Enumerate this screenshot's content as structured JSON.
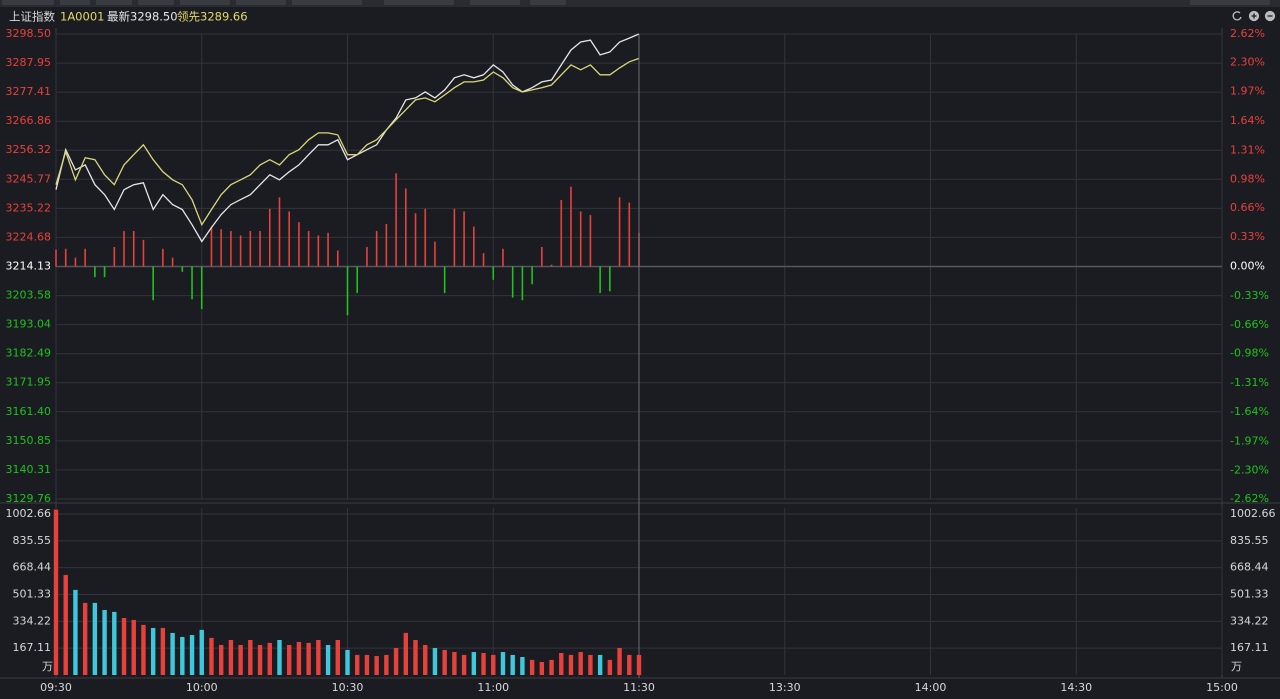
{
  "header": {
    "name": "上证指数",
    "code": "1A0001",
    "latest": "最新3298.50",
    "leading": "领先3289.66"
  },
  "chart_data": {
    "type": "line",
    "x_labels": [
      "09:30",
      "10:00",
      "10:30",
      "11:00",
      "11:30",
      "13:30",
      "14:00",
      "14:30",
      "15:00"
    ],
    "ylim": [
      3129.76,
      3298.5
    ],
    "yticks": [
      {
        "value": 3298.5,
        "label": "3298.50"
      },
      3287.95,
      3277.41,
      3266.86,
      3256.32,
      3245.77,
      3235.22,
      3224.68,
      3214.13,
      3203.58,
      3193.04,
      3182.49,
      3171.95,
      {
        "value": 3161.4,
        "label": "3161.40"
      },
      3150.85,
      3140.31,
      3129.76
    ],
    "y2lim": [
      -2.62,
      2.62
    ],
    "y2ticks": [
      {
        "value": 2.62,
        "label": "2.62%"
      },
      {
        "value": 2.3,
        "label": "2.30%"
      },
      {
        "value": 1.97,
        "label": "1.97%"
      },
      {
        "value": 1.64,
        "label": "1.64%"
      },
      {
        "value": 1.31,
        "label": "1.31%"
      },
      {
        "value": 0.98,
        "label": "0.98%"
      },
      {
        "value": 0.66,
        "label": "0.66%"
      },
      {
        "value": 0.33,
        "label": "0.33%"
      },
      {
        "value": 0,
        "label": "0.00%"
      },
      {
        "value": -0.33,
        "label": "-0.33%"
      },
      {
        "value": -0.66,
        "label": "-0.66%"
      },
      {
        "value": -0.98,
        "label": "-0.98%"
      },
      {
        "value": -1.31,
        "label": "-1.31%"
      },
      {
        "value": -1.64,
        "label": "-1.64%"
      },
      {
        "value": -1.97,
        "label": "-1.97%"
      },
      {
        "value": -2.3,
        "label": "-2.30%"
      },
      {
        "value": -2.62,
        "label": "-2.62%"
      }
    ],
    "grid": true,
    "series": [
      {
        "color": "#e6e6e6",
        "values": [
          3242.0,
          3256.5,
          3249.2,
          3251.0,
          3243.8,
          3240.2,
          3234.8,
          3242.0,
          3243.8,
          3244.5,
          3234.8,
          3240.2,
          3236.6,
          3234.8,
          3229.3,
          3223.2,
          3228.3,
          3233.0,
          3236.6,
          3238.4,
          3240.2,
          3243.8,
          3247.4,
          3245.6,
          3248.5,
          3251.0,
          3254.7,
          3258.3,
          3258.3,
          3260.1,
          3252.9,
          3254.7,
          3256.5,
          3258.3,
          3263.7,
          3268.0,
          3274.6,
          3275.3,
          3277.5,
          3275.3,
          3278.2,
          3282.6,
          3283.7,
          3282.6,
          3283.7,
          3287.3,
          3284.7,
          3280.0,
          3277.5,
          3279.0,
          3281.1,
          3281.8,
          3287.3,
          3292.7,
          3295.6,
          3296.3,
          3290.9,
          3292.0,
          3295.6,
          3297.0,
          3298.5
        ]
      },
      {
        "color": "#d9d77a",
        "values": [
          3243.8,
          3255.8,
          3245.6,
          3253.6,
          3252.9,
          3247.4,
          3243.8,
          3251.0,
          3254.7,
          3258.3,
          3252.9,
          3248.5,
          3245.6,
          3243.8,
          3238.4,
          3229.3,
          3234.8,
          3240.2,
          3243.8,
          3245.6,
          3247.4,
          3251.0,
          3252.9,
          3251.0,
          3254.7,
          3256.5,
          3260.1,
          3262.6,
          3262.6,
          3261.9,
          3254.7,
          3254.7,
          3258.3,
          3260.1,
          3263.7,
          3267.4,
          3271.0,
          3274.6,
          3275.3,
          3273.9,
          3276.4,
          3279.0,
          3281.1,
          3281.1,
          3281.8,
          3284.7,
          3282.6,
          3279.0,
          3277.5,
          3278.2,
          3279.0,
          3280.0,
          3283.7,
          3287.3,
          3285.5,
          3287.3,
          3283.7,
          3283.7,
          3286.2,
          3288.4,
          3289.66
        ]
      },
      {
        "type": "bar",
        "axis": "y2",
        "up_color": "#e8413c",
        "down_color": "#1ec31e",
        "values": [
          0.19,
          0.2,
          0.1,
          0.2,
          -0.12,
          -0.12,
          0.22,
          0.4,
          0.4,
          0.3,
          -0.38,
          0.2,
          0.1,
          -0.06,
          -0.37,
          -0.48,
          0.45,
          0.42,
          0.4,
          0.35,
          0.4,
          0.4,
          0.65,
          0.78,
          0.62,
          0.5,
          0.4,
          0.35,
          0.38,
          0.18,
          -0.55,
          -0.3,
          0.22,
          0.4,
          0.48,
          1.05,
          0.88,
          0.6,
          0.65,
          0.28,
          -0.3,
          0.65,
          0.62,
          0.45,
          0.15,
          -0.15,
          0.2,
          -0.35,
          -0.38,
          -0.2,
          0.22,
          0.02,
          0.75,
          0.9,
          0.62,
          0.58,
          -0.3,
          -0.28,
          0.78,
          0.72,
          0.38
        ]
      }
    ],
    "volume": {
      "type": "bar",
      "unit": "万",
      "ylim": [
        0,
        1040
      ],
      "yticks": [
        1002.66,
        835.55,
        668.44,
        501.33,
        334.22,
        167.11
      ],
      "values": [
        1030,
        623,
        530,
        449,
        449,
        405,
        393,
        355,
        343,
        312,
        293,
        293,
        262,
        237,
        249,
        281,
        231,
        187,
        218,
        187,
        218,
        187,
        200,
        218,
        187,
        206,
        200,
        218,
        187,
        218,
        156,
        125,
        125,
        118,
        125,
        168,
        262,
        218,
        187,
        168,
        156,
        143,
        125,
        143,
        137,
        125,
        143,
        125,
        112,
        94,
        81,
        94,
        137,
        125,
        143,
        125,
        125,
        94,
        168,
        125,
        125
      ],
      "colors": [
        "#e8413c",
        "#e8413c",
        "#3ec8dc",
        "#e8413c",
        "#3ec8dc",
        "#3ec8dc",
        "#3ec8dc",
        "#e8413c",
        "#e8413c",
        "#e8413c",
        "#3ec8dc",
        "#e8413c",
        "#3ec8dc",
        "#3ec8dc",
        "#3ec8dc",
        "#3ec8dc",
        "#e8413c",
        "#e8413c",
        "#e8413c",
        "#e8413c",
        "#e8413c",
        "#e8413c",
        "#e8413c",
        "#3ec8dc",
        "#e8413c",
        "#e8413c",
        "#e8413c",
        "#e8413c",
        "#3ec8dc",
        "#e8413c",
        "#3ec8dc",
        "#e8413c",
        "#e8413c",
        "#e8413c",
        "#e8413c",
        "#e8413c",
        "#e8413c",
        "#e8413c",
        "#e8413c",
        "#3ec8dc",
        "#e8413c",
        "#e8413c",
        "#e8413c",
        "#3ec8dc",
        "#e8413c",
        "#e8413c",
        "#3ec8dc",
        "#3ec8dc",
        "#3ec8dc",
        "#e8413c",
        "#e8413c",
        "#e8413c",
        "#e8413c",
        "#e8413c",
        "#e8413c",
        "#e8413c",
        "#3ec8dc",
        "#e8413c",
        "#e8413c",
        "#e8413c",
        "#e8413c"
      ]
    }
  }
}
